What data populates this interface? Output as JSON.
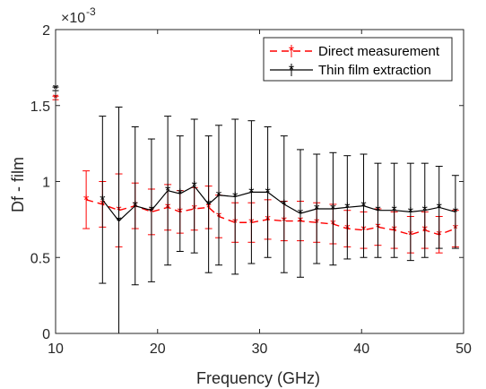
{
  "chart_data": {
    "type": "line",
    "title": "",
    "xlabel": "Frequency (GHz)",
    "ylabel": "Df - film",
    "xlim": [
      10,
      50
    ],
    "ylim": [
      0,
      0.002
    ],
    "y_exponent_label": "×10",
    "y_exponent_power": "-3",
    "x_ticks": [
      10,
      20,
      30,
      40,
      50
    ],
    "x_tick_labels": [
      "10",
      "20",
      "30",
      "40",
      "50"
    ],
    "y_ticks": [
      0,
      0.0005,
      0.001,
      0.0015,
      0.002
    ],
    "y_tick_labels": [
      "0",
      "0.5",
      "1",
      "1.5",
      "2"
    ],
    "grid": false,
    "legend_position": "top-right",
    "series": [
      {
        "name": "Direct measurement",
        "color": "#ff0000",
        "line_style": "dashed",
        "marker": "asterisk",
        "points": [
          {
            "x": 10,
            "y": 0.00155,
            "err": 0
          },
          {
            "x": 13.0,
            "y": 0.00088,
            "err": 0.00019
          },
          {
            "x": 14.6,
            "y": 0.00085,
            "err": 0.00015
          },
          {
            "x": 16.2,
            "y": 0.00081,
            "err": 0.00024
          },
          {
            "x": 17.8,
            "y": 0.00084,
            "err": 0.00015
          },
          {
            "x": 19.4,
            "y": 0.0008,
            "err": 0.00015
          },
          {
            "x": 21.0,
            "y": 0.00083,
            "err": 0.00015
          },
          {
            "x": 22.2,
            "y": 0.0008,
            "err": 0.00014
          },
          {
            "x": 23.6,
            "y": 0.00082,
            "err": 0.00014
          },
          {
            "x": 25.0,
            "y": 0.00083,
            "err": 0.00014
          },
          {
            "x": 26.0,
            "y": 0.00077,
            "err": 0.00014
          },
          {
            "x": 27.6,
            "y": 0.00073,
            "err": 0.00013
          },
          {
            "x": 29.2,
            "y": 0.00073,
            "err": 0.00013
          },
          {
            "x": 30.8,
            "y": 0.00075,
            "err": 0.00013
          },
          {
            "x": 32.4,
            "y": 0.00074,
            "err": 0.00013
          },
          {
            "x": 34.0,
            "y": 0.00074,
            "err": 0.00013
          },
          {
            "x": 35.6,
            "y": 0.00073,
            "err": 0.00013
          },
          {
            "x": 37.2,
            "y": 0.00072,
            "err": 0.00013
          },
          {
            "x": 38.6,
            "y": 0.00069,
            "err": 0.00012
          },
          {
            "x": 40.2,
            "y": 0.00068,
            "err": 0.00012
          },
          {
            "x": 41.6,
            "y": 0.0007,
            "err": 0.00012
          },
          {
            "x": 43.2,
            "y": 0.00068,
            "err": 0.00012
          },
          {
            "x": 44.8,
            "y": 0.00065,
            "err": 0.00012
          },
          {
            "x": 46.2,
            "y": 0.00068,
            "err": 0.00012
          },
          {
            "x": 47.6,
            "y": 0.00065,
            "err": 0.00012
          },
          {
            "x": 49.2,
            "y": 0.00069,
            "err": 0.00012
          }
        ]
      },
      {
        "name": "Thin film extraction",
        "color": "#000000",
        "line_style": "solid",
        "marker": "asterisk",
        "points": [
          {
            "x": 10,
            "y": 0.00161,
            "err": 0
          },
          {
            "x": 14.6,
            "y": 0.00088,
            "err": 0.00055
          },
          {
            "x": 16.2,
            "y": 0.00074,
            "err": 0.00075
          },
          {
            "x": 17.8,
            "y": 0.00084,
            "err": 0.00052
          },
          {
            "x": 19.4,
            "y": 0.00081,
            "err": 0.00047
          },
          {
            "x": 21.0,
            "y": 0.00094,
            "err": 0.00049
          },
          {
            "x": 22.2,
            "y": 0.00092,
            "err": 0.00038
          },
          {
            "x": 23.6,
            "y": 0.00097,
            "err": 0.00044
          },
          {
            "x": 25.0,
            "y": 0.00085,
            "err": 0.00045
          },
          {
            "x": 26.0,
            "y": 0.00091,
            "err": 0.00046
          },
          {
            "x": 27.6,
            "y": 0.0009,
            "err": 0.00051
          },
          {
            "x": 29.2,
            "y": 0.00093,
            "err": 0.00047
          },
          {
            "x": 30.8,
            "y": 0.00093,
            "err": 0.00043
          },
          {
            "x": 32.4,
            "y": 0.00085,
            "err": 0.00045
          },
          {
            "x": 34.0,
            "y": 0.00079,
            "err": 0.00042
          },
          {
            "x": 35.6,
            "y": 0.00082,
            "err": 0.00036
          },
          {
            "x": 37.2,
            "y": 0.00082,
            "err": 0.00037
          },
          {
            "x": 38.6,
            "y": 0.00083,
            "err": 0.00034
          },
          {
            "x": 40.2,
            "y": 0.00084,
            "err": 0.00034
          },
          {
            "x": 41.6,
            "y": 0.00081,
            "err": 0.00031
          },
          {
            "x": 43.2,
            "y": 0.00081,
            "err": 0.00031
          },
          {
            "x": 44.8,
            "y": 0.0008,
            "err": 0.00032
          },
          {
            "x": 46.2,
            "y": 0.00081,
            "err": 0.00031
          },
          {
            "x": 47.6,
            "y": 0.00083,
            "err": 0.00027
          },
          {
            "x": 49.2,
            "y": 0.0008,
            "err": 0.00024
          }
        ]
      }
    ]
  }
}
